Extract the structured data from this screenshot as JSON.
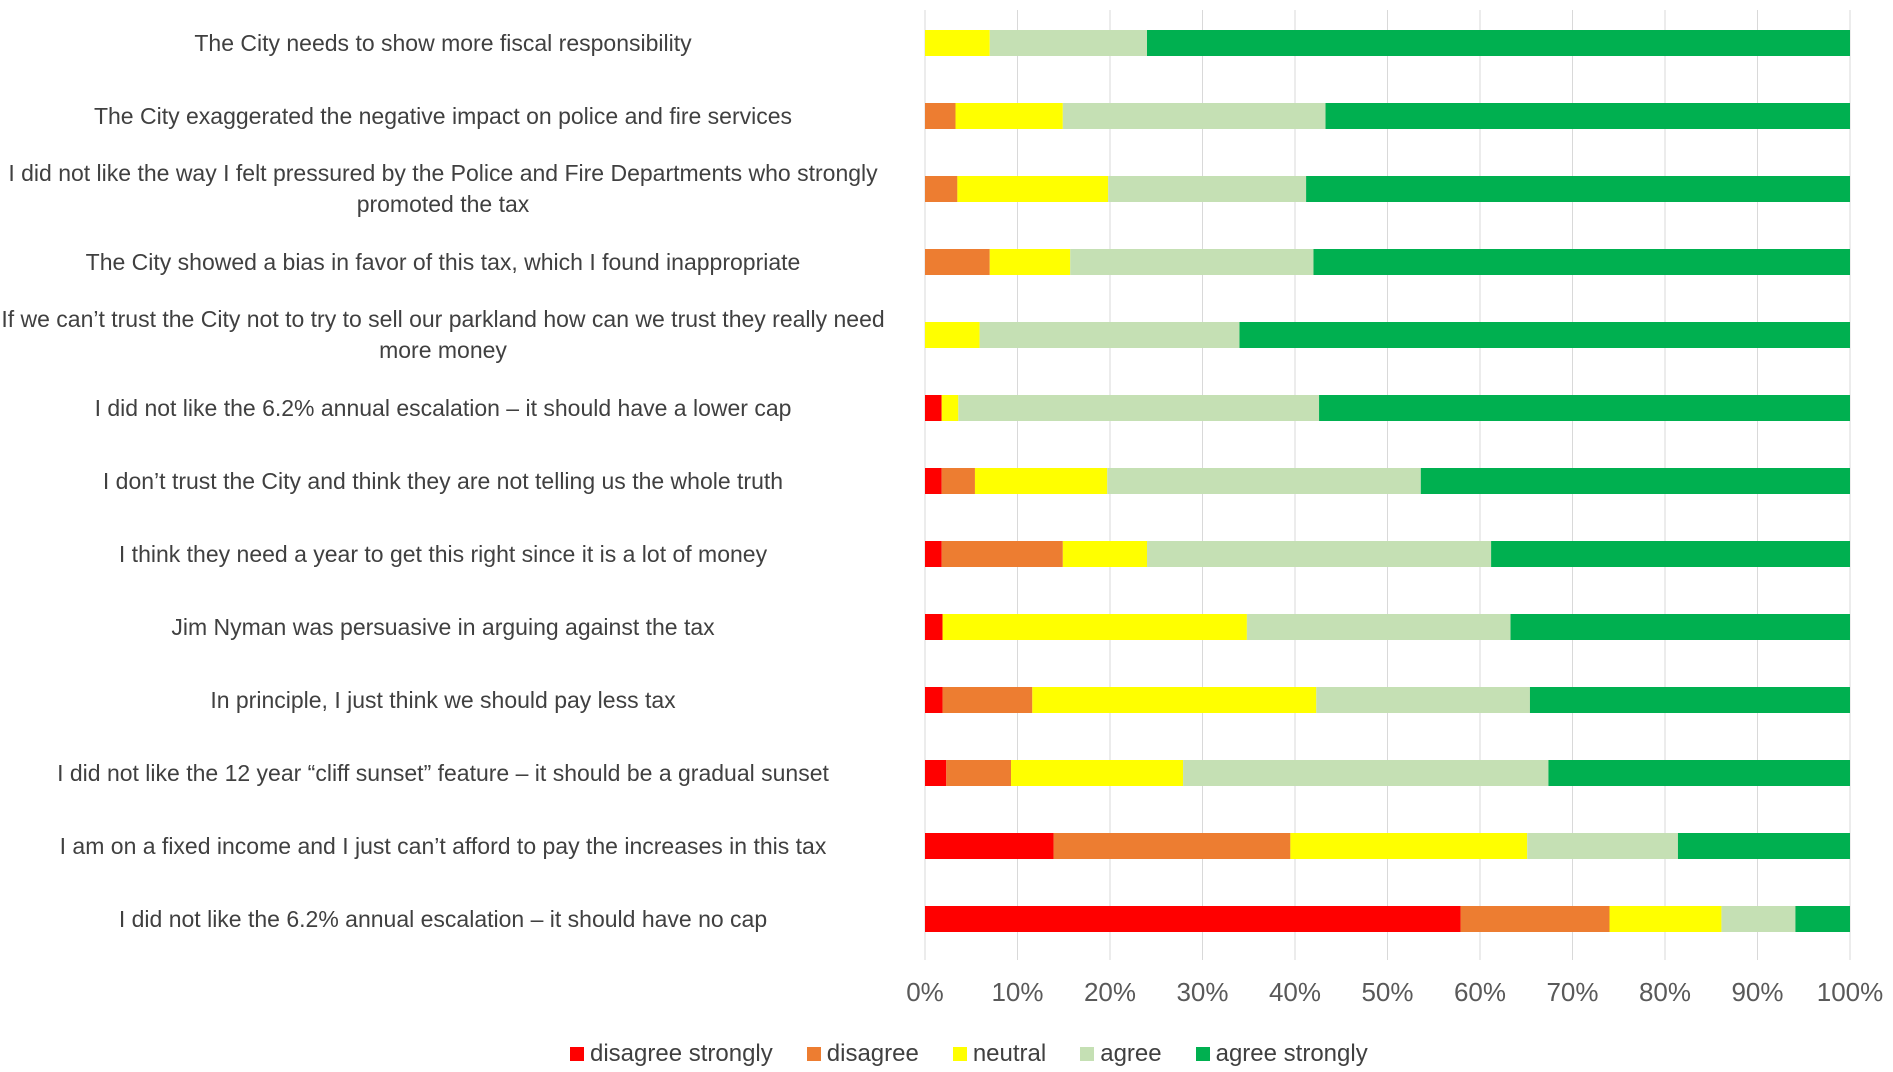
{
  "chart_data": {
    "type": "bar",
    "orientation": "horizontal",
    "stacked": true,
    "percent": true,
    "title": "",
    "xlabel": "",
    "ylabel": "",
    "xlim": [
      0,
      100
    ],
    "xticks": [
      "0%",
      "10%",
      "20%",
      "30%",
      "40%",
      "50%",
      "60%",
      "70%",
      "80%",
      "90%",
      "100%"
    ],
    "grid": "vertical",
    "legend": "bottom",
    "categories": [
      "The City needs to show more fiscal responsibility",
      "The City exaggerated the negative impact on police and fire services",
      "I did not like the way I felt pressured by the Police and Fire Departments who strongly promoted the tax",
      "The City showed a bias in favor of this tax, which I found inappropriate",
      "If we can’t trust the City not to try to sell our parkland how can we trust they really need more money",
      "I did not like the 6.2% annual escalation – it should have a lower cap",
      "I don’t trust the City and think they are not telling us the whole truth",
      "I think they need a year to get this right since it is a lot of money",
      "Jim Nyman was persuasive in arguing against the tax",
      "In principle, I just think we should pay less tax",
      "I did not like the 12 year “cliff sunset” feature – it should be a gradual sunset",
      "I am on a fixed income and I just can’t afford to pay the increases in this tax",
      "I did not like the 6.2% annual escalation – it should have no cap"
    ],
    "series": [
      {
        "name": "disagree strongly",
        "color": "#ff0000",
        "values": [
          0,
          0,
          0,
          0,
          0,
          1.8,
          1.8,
          1.8,
          1.9,
          1.9,
          2.3,
          13.9,
          57.9
        ]
      },
      {
        "name": "disagree",
        "color": "#ed7d31",
        "values": [
          0,
          3.3,
          3.5,
          7.0,
          0,
          0,
          3.6,
          13.1,
          0,
          9.7,
          7.0,
          25.6,
          16.1
        ]
      },
      {
        "name": "neutral",
        "color": "#ffff00",
        "values": [
          7.0,
          11.6,
          16.3,
          8.7,
          5.9,
          1.8,
          14.3,
          9.1,
          32.9,
          30.7,
          18.6,
          25.6,
          12.1
        ]
      },
      {
        "name": "agree",
        "color": "#c5e0b4",
        "values": [
          17.0,
          28.4,
          21.4,
          26.3,
          28.1,
          39.0,
          33.9,
          37.2,
          28.5,
          23.1,
          39.5,
          16.3,
          8.0
        ]
      },
      {
        "name": "agree strongly",
        "color": "#00b050",
        "values": [
          76.0,
          56.7,
          58.8,
          58.0,
          66.0,
          57.4,
          46.4,
          38.8,
          36.7,
          34.6,
          32.6,
          18.6,
          5.9
        ]
      }
    ]
  }
}
